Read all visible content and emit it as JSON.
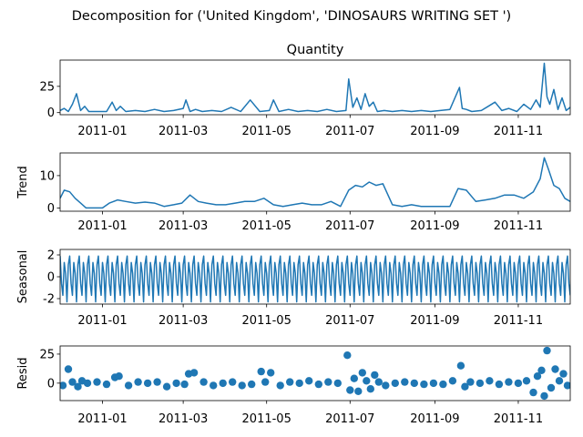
{
  "figure": {
    "suptitle": "Decomposition for ('United Kingdom', 'DINOSAURS  WRITING SET ')"
  },
  "colors": {
    "series": "#1f77b4",
    "axis": "#000000",
    "background": "#ffffff"
  },
  "chart_data": [
    {
      "panel": "observed",
      "type": "line",
      "title": "Quantity",
      "ylabel": "",
      "xlim": [
        "2010-12-01",
        "2011-12-09"
      ],
      "ylim": [
        -2,
        50
      ],
      "yticks": [
        0,
        25
      ],
      "xticks": [
        "2011-01",
        "2011-03",
        "2011-05",
        "2011-07",
        "2011-09",
        "2011-11"
      ],
      "grid": false,
      "x": [
        "2010-12-01",
        "2010-12-04",
        "2010-12-07",
        "2010-12-10",
        "2010-12-13",
        "2010-12-16",
        "2010-12-19",
        "2010-12-22",
        "2011-01-04",
        "2011-01-08",
        "2011-01-11",
        "2011-01-14",
        "2011-01-18",
        "2011-01-25",
        "2011-02-01",
        "2011-02-08",
        "2011-02-15",
        "2011-02-22",
        "2011-03-01",
        "2011-03-03",
        "2011-03-06",
        "2011-03-10",
        "2011-03-15",
        "2011-03-22",
        "2011-03-29",
        "2011-04-05",
        "2011-04-12",
        "2011-04-19",
        "2011-04-26",
        "2011-05-03",
        "2011-05-06",
        "2011-05-10",
        "2011-05-17",
        "2011-05-24",
        "2011-05-31",
        "2011-06-07",
        "2011-06-14",
        "2011-06-21",
        "2011-06-28",
        "2011-06-30",
        "2011-07-03",
        "2011-07-06",
        "2011-07-09",
        "2011-07-12",
        "2011-07-15",
        "2011-07-18",
        "2011-07-21",
        "2011-07-26",
        "2011-08-01",
        "2011-08-08",
        "2011-08-15",
        "2011-08-22",
        "2011-08-29",
        "2011-09-05",
        "2011-09-12",
        "2011-09-19",
        "2011-09-21",
        "2011-09-24",
        "2011-09-28",
        "2011-10-05",
        "2011-10-10",
        "2011-10-15",
        "2011-10-20",
        "2011-10-25",
        "2011-10-31",
        "2011-11-05",
        "2011-11-10",
        "2011-11-14",
        "2011-11-17",
        "2011-11-20",
        "2011-11-22",
        "2011-11-24",
        "2011-11-27",
        "2011-11-30",
        "2011-12-03",
        "2011-12-06",
        "2011-12-09"
      ],
      "y": [
        2,
        4,
        1,
        8,
        18,
        2,
        6,
        1,
        1,
        10,
        2,
        6,
        1,
        2,
        1,
        3,
        1,
        2,
        4,
        12,
        1,
        3,
        1,
        2,
        1,
        5,
        1,
        12,
        1,
        2,
        12,
        1,
        3,
        1,
        2,
        1,
        3,
        1,
        2,
        32,
        5,
        14,
        3,
        18,
        6,
        10,
        1,
        2,
        1,
        2,
        1,
        2,
        1,
        2,
        3,
        24,
        4,
        3,
        1,
        2,
        6,
        10,
        2,
        4,
        1,
        8,
        3,
        12,
        5,
        47,
        15,
        8,
        22,
        3,
        14,
        2,
        5
      ]
    },
    {
      "panel": "trend",
      "type": "line",
      "title": "",
      "ylabel": "Trend",
      "xlim": [
        "2010-12-01",
        "2011-12-09"
      ],
      "ylim": [
        -1,
        17
      ],
      "yticks": [
        0,
        10
      ],
      "grid": false,
      "x": [
        "2010-12-01",
        "2010-12-04",
        "2010-12-08",
        "2010-12-12",
        "2010-12-16",
        "2010-12-20",
        "2010-12-24",
        "2011-01-01",
        "2011-01-06",
        "2011-01-12",
        "2011-01-18",
        "2011-01-25",
        "2011-02-01",
        "2011-02-08",
        "2011-02-15",
        "2011-02-22",
        "2011-02-28",
        "2011-03-06",
        "2011-03-12",
        "2011-03-18",
        "2011-03-25",
        "2011-04-01",
        "2011-04-08",
        "2011-04-15",
        "2011-04-22",
        "2011-04-29",
        "2011-05-06",
        "2011-05-13",
        "2011-05-20",
        "2011-05-27",
        "2011-06-03",
        "2011-06-10",
        "2011-06-17",
        "2011-06-24",
        "2011-06-30",
        "2011-07-05",
        "2011-07-10",
        "2011-07-15",
        "2011-07-20",
        "2011-07-25",
        "2011-08-01",
        "2011-08-08",
        "2011-08-15",
        "2011-08-22",
        "2011-08-29",
        "2011-09-05",
        "2011-09-12",
        "2011-09-18",
        "2011-09-24",
        "2011-10-01",
        "2011-10-08",
        "2011-10-15",
        "2011-10-22",
        "2011-10-29",
        "2011-11-05",
        "2011-11-12",
        "2011-11-17",
        "2011-11-20",
        "2011-11-23",
        "2011-11-27",
        "2011-12-01",
        "2011-12-05",
        "2011-12-09"
      ],
      "y": [
        3,
        5.5,
        5,
        3,
        1.5,
        0,
        0,
        0,
        1.5,
        2.5,
        2,
        1.5,
        1.8,
        1.5,
        0.5,
        1,
        1.5,
        4,
        2,
        1.5,
        1,
        1,
        1.5,
        2,
        2,
        3,
        1,
        0.5,
        1,
        1.5,
        1,
        1,
        2,
        0.5,
        5.5,
        7,
        6.5,
        8,
        7,
        7.5,
        1,
        0.5,
        1,
        0.5,
        0.5,
        0.5,
        0.5,
        6,
        5.5,
        2,
        2.5,
        3,
        4,
        4,
        3,
        5,
        9,
        15.5,
        12,
        7,
        6,
        3,
        2
      ]
    },
    {
      "panel": "seasonal",
      "type": "line",
      "title": "",
      "ylabel": "Seasonal",
      "xlim": [
        "2010-12-01",
        "2011-12-09"
      ],
      "ylim": [
        -2.5,
        2.5
      ],
      "yticks": [
        -2,
        0,
        2
      ],
      "grid": false,
      "period_days": 7,
      "pattern": [
        1.9,
        -0.6,
        -1.7,
        1.3,
        0.3,
        -2.3,
        1.1
      ]
    },
    {
      "panel": "resid",
      "type": "scatter",
      "title": "",
      "ylabel": "Resid",
      "xlim": [
        "2010-12-01",
        "2011-12-09"
      ],
      "ylim": [
        -15,
        32
      ],
      "yticks": [
        0,
        25
      ],
      "grid": false,
      "x": [
        "2010-12-03",
        "2010-12-07",
        "2010-12-10",
        "2010-12-14",
        "2010-12-17",
        "2010-12-21",
        "2010-12-28",
        "2011-01-04",
        "2011-01-10",
        "2011-01-13",
        "2011-01-20",
        "2011-01-27",
        "2011-02-03",
        "2011-02-10",
        "2011-02-17",
        "2011-02-24",
        "2011-03-02",
        "2011-03-05",
        "2011-03-09",
        "2011-03-16",
        "2011-03-23",
        "2011-03-30",
        "2011-04-06",
        "2011-04-13",
        "2011-04-20",
        "2011-04-27",
        "2011-04-30",
        "2011-05-04",
        "2011-05-11",
        "2011-05-18",
        "2011-05-25",
        "2011-06-01",
        "2011-06-08",
        "2011-06-15",
        "2011-06-22",
        "2011-06-29",
        "2011-07-01",
        "2011-07-04",
        "2011-07-07",
        "2011-07-10",
        "2011-07-13",
        "2011-07-16",
        "2011-07-19",
        "2011-07-22",
        "2011-07-27",
        "2011-08-03",
        "2011-08-10",
        "2011-08-17",
        "2011-08-24",
        "2011-08-31",
        "2011-09-07",
        "2011-09-14",
        "2011-09-20",
        "2011-09-23",
        "2011-09-27",
        "2011-10-04",
        "2011-10-11",
        "2011-10-18",
        "2011-10-25",
        "2011-11-01",
        "2011-11-07",
        "2011-11-12",
        "2011-11-15",
        "2011-11-18",
        "2011-11-20",
        "2011-11-22",
        "2011-11-25",
        "2011-11-28",
        "2011-12-01",
        "2011-12-04",
        "2011-12-07"
      ],
      "y": [
        -2,
        12,
        1,
        -3,
        2,
        0,
        1,
        -1,
        5,
        6,
        -2,
        1,
        0,
        1,
        -3,
        0,
        -1,
        8,
        9,
        1,
        -2,
        0,
        1,
        -2,
        -1,
        10,
        1,
        9,
        -2,
        1,
        0,
        2,
        -1,
        1,
        0,
        24,
        -6,
        4,
        -7,
        9,
        2,
        -5,
        7,
        1,
        -2,
        0,
        1,
        0,
        -1,
        0,
        -1,
        2,
        15,
        -3,
        1,
        0,
        2,
        -1,
        1,
        0,
        2,
        -8,
        6,
        11,
        -11,
        28,
        -4,
        12,
        2,
        8,
        -2
      ]
    }
  ]
}
